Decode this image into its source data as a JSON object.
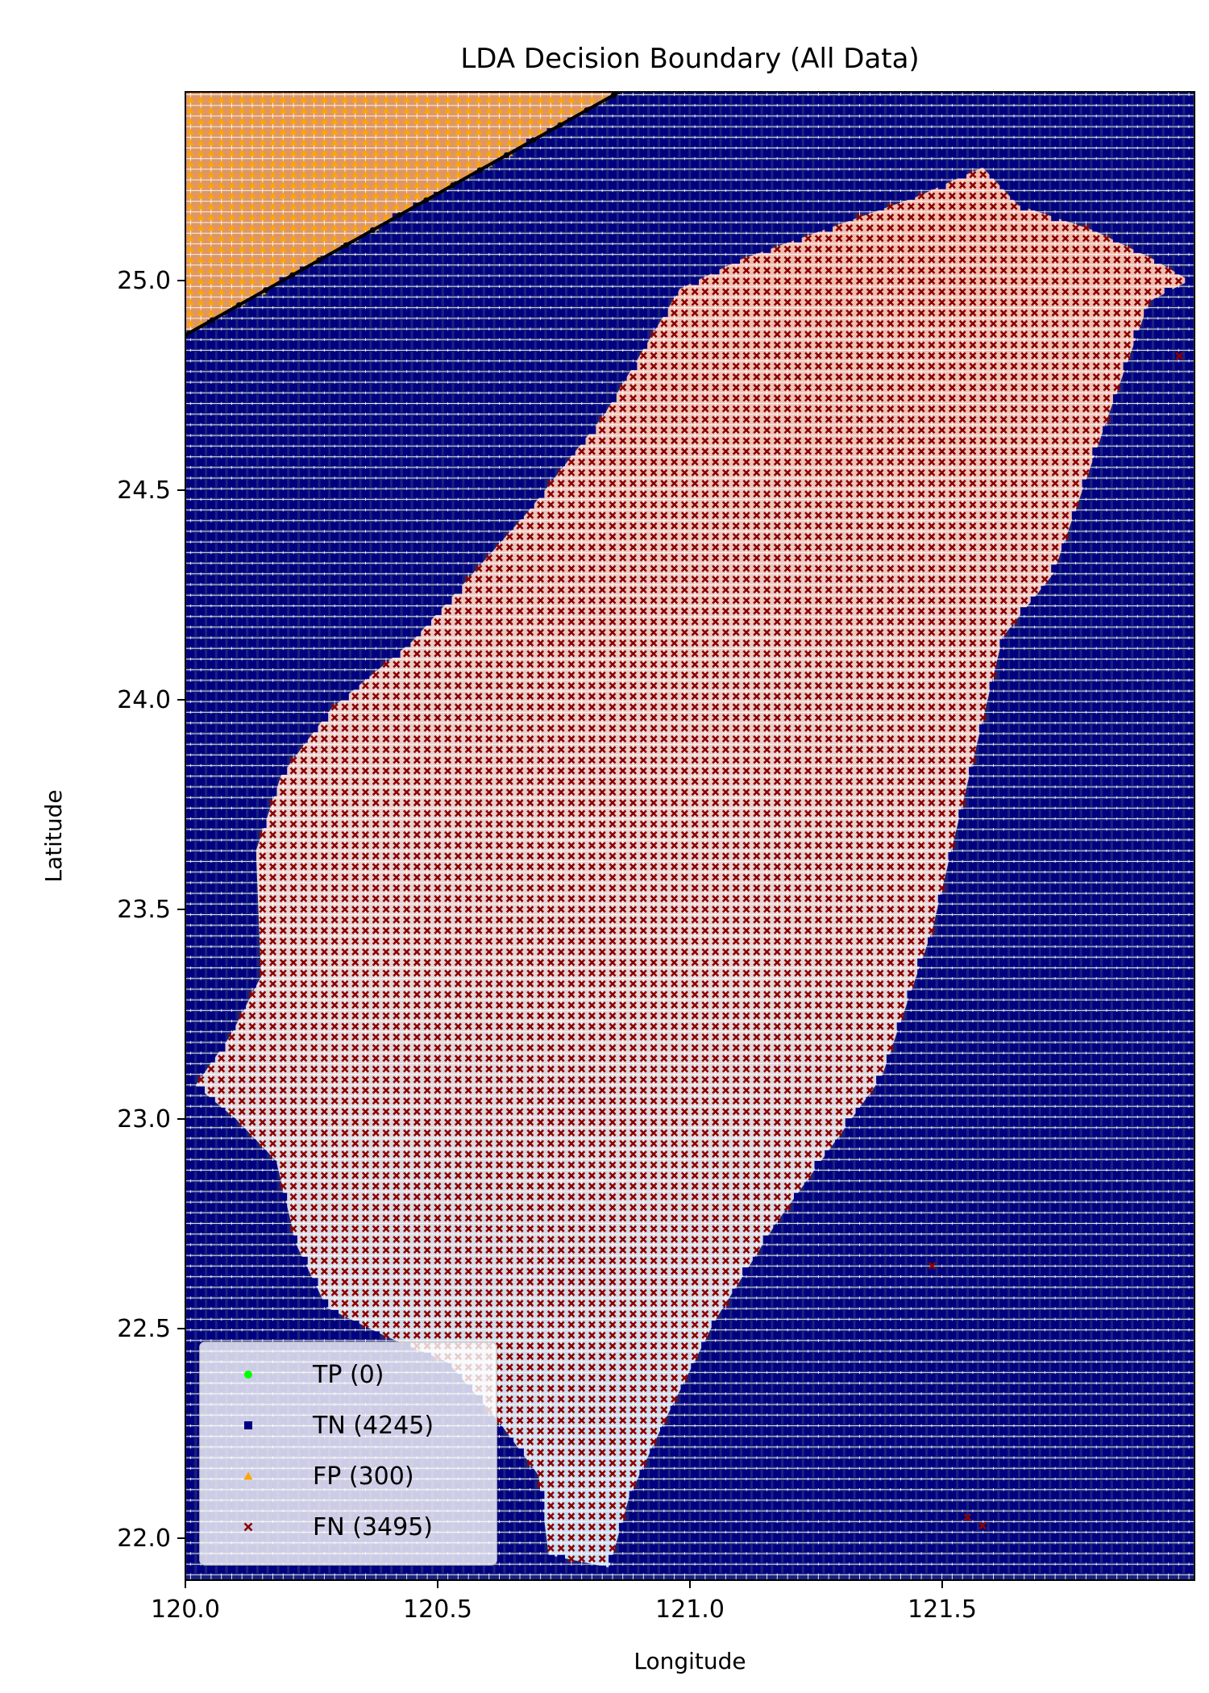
{
  "chart_data": {
    "type": "scatter",
    "title": "LDA Decision Boundary (All Data)",
    "xlabel": "Longitude",
    "ylabel": "Latitude",
    "xlim": [
      120.0,
      122.0
    ],
    "ylim": [
      21.9,
      25.45
    ],
    "xticks": [
      120.0,
      120.5,
      121.0,
      121.5
    ],
    "xtick_labels": [
      "120.0",
      "120.5",
      "121.0",
      "121.5"
    ],
    "yticks": [
      22.0,
      22.5,
      23.0,
      23.5,
      24.0,
      24.5,
      25.0
    ],
    "ytick_labels": [
      "22.0",
      "22.5",
      "23.0",
      "23.5",
      "24.0",
      "24.5",
      "25.0"
    ],
    "grid_step": {
      "lon": 0.0204,
      "lat": 0.0254
    },
    "decision_boundary": {
      "description": "LDA linear boundary",
      "points": [
        [
          120.0,
          24.87
        ],
        [
          120.86,
          25.45
        ]
      ],
      "color": "#000000"
    },
    "regions": {
      "above_boundary_color": "#f4a460",
      "below_boundary_color": "#1a237e"
    },
    "positive_region_outline": [
      [
        120.02,
        23.08
      ],
      [
        120.09,
        23.2
      ],
      [
        120.15,
        23.34
      ],
      [
        120.14,
        23.64
      ],
      [
        120.19,
        23.82
      ],
      [
        120.29,
        23.98
      ],
      [
        120.45,
        24.14
      ],
      [
        120.68,
        24.45
      ],
      [
        120.83,
        24.68
      ],
      [
        120.98,
        24.98
      ],
      [
        121.1,
        25.05
      ],
      [
        121.45,
        25.2
      ],
      [
        121.58,
        25.27
      ],
      [
        121.65,
        25.18
      ],
      [
        121.8,
        25.12
      ],
      [
        121.92,
        25.05
      ],
      [
        121.99,
        25.0
      ],
      [
        121.91,
        24.95
      ],
      [
        121.83,
        24.68
      ],
      [
        121.72,
        24.3
      ],
      [
        121.62,
        24.15
      ],
      [
        121.55,
        23.8
      ],
      [
        121.48,
        23.45
      ],
      [
        121.38,
        23.1
      ],
      [
        121.17,
        22.75
      ],
      [
        121.05,
        22.52
      ],
      [
        120.95,
        22.28
      ],
      [
        120.88,
        22.1
      ],
      [
        120.84,
        21.93
      ],
      [
        120.72,
        21.96
      ],
      [
        120.7,
        22.15
      ],
      [
        120.62,
        22.28
      ],
      [
        120.52,
        22.42
      ],
      [
        120.4,
        22.48
      ],
      [
        120.28,
        22.55
      ],
      [
        120.22,
        22.7
      ],
      [
        120.18,
        22.9
      ],
      [
        120.1,
        23.0
      ]
    ],
    "outliers_fn": [
      [
        121.48,
        22.65
      ],
      [
        121.55,
        22.05
      ],
      [
        121.58,
        22.03
      ],
      [
        121.97,
        24.82
      ]
    ],
    "series": [
      {
        "name": "TP",
        "label": "TP (0)",
        "count": 0,
        "color": "#00ff00",
        "marker": "circle"
      },
      {
        "name": "TN",
        "label": "TN (4245)",
        "count": 4245,
        "color": "#000080",
        "marker": "square"
      },
      {
        "name": "FP",
        "label": "FP (300)",
        "count": 300,
        "color": "#ffa500",
        "marker": "triangle"
      },
      {
        "name": "FN",
        "label": "FN (3495)",
        "count": 3495,
        "color": "#8b0000",
        "marker": "x"
      }
    ],
    "legend_position": "lower-left"
  }
}
